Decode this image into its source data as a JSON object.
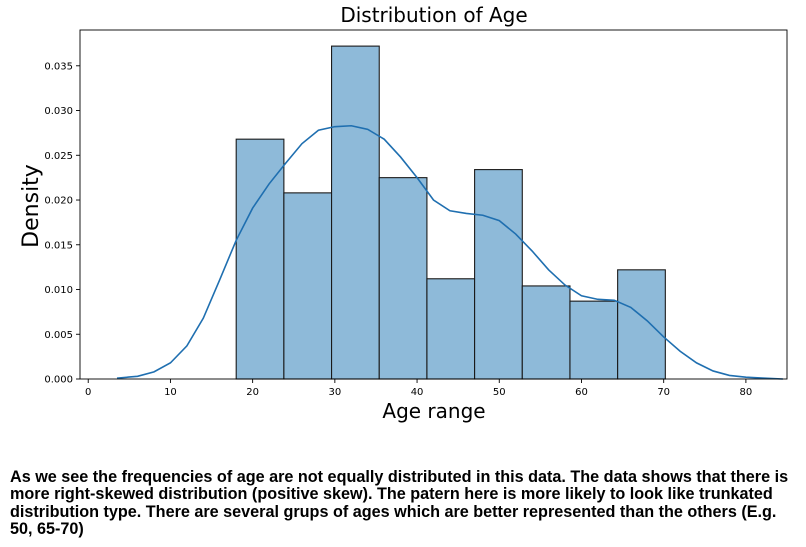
{
  "chart_data": {
    "type": "bar",
    "title": "Distribution of Age",
    "xlabel": "Age range",
    "ylabel": "Density",
    "xlim": [
      -1,
      85
    ],
    "ylim": [
      0,
      0.039
    ],
    "xticks": [
      0,
      10,
      20,
      30,
      40,
      50,
      60,
      70,
      80
    ],
    "xtick_labels": [
      "0",
      "10",
      "20",
      "30",
      "40",
      "50",
      "60",
      "70",
      "80"
    ],
    "yticks": [
      0,
      0.005,
      0.01,
      0.015,
      0.02,
      0.025,
      0.03,
      0.035
    ],
    "ytick_labels": [
      "0.000",
      "0.005",
      "0.010",
      "0.015",
      "0.020",
      "0.025",
      "0.030",
      "0.035"
    ],
    "bins": [
      {
        "start": 18.0,
        "end": 23.8,
        "density": 0.0268
      },
      {
        "start": 23.8,
        "end": 29.6,
        "density": 0.0208
      },
      {
        "start": 29.6,
        "end": 35.4,
        "density": 0.0372
      },
      {
        "start": 35.4,
        "end": 41.2,
        "density": 0.0225
      },
      {
        "start": 41.2,
        "end": 47.0,
        "density": 0.0112
      },
      {
        "start": 47.0,
        "end": 52.8,
        "density": 0.0234
      },
      {
        "start": 52.8,
        "end": 58.6,
        "density": 0.0104
      },
      {
        "start": 58.6,
        "end": 64.4,
        "density": 0.0087
      },
      {
        "start": 64.4,
        "end": 70.2,
        "density": 0.0122
      }
    ],
    "kde": {
      "x": [
        3.5,
        6,
        8,
        10,
        12,
        14,
        16,
        18,
        20,
        22,
        24,
        26,
        28,
        30,
        32,
        34,
        36,
        38,
        40,
        42,
        44,
        46,
        48,
        50,
        52,
        54,
        56,
        58,
        60,
        62,
        64,
        66,
        68,
        70,
        72,
        74,
        76,
        78,
        80,
        82,
        84.5
      ],
      "y": [
        0.0001,
        0.0003,
        0.0008,
        0.0018,
        0.0037,
        0.0068,
        0.0111,
        0.0155,
        0.0191,
        0.0218,
        0.0241,
        0.0263,
        0.0278,
        0.0282,
        0.0283,
        0.0279,
        0.0268,
        0.0248,
        0.0225,
        0.02,
        0.0188,
        0.0185,
        0.0183,
        0.0177,
        0.0162,
        0.0143,
        0.0122,
        0.0105,
        0.0093,
        0.0089,
        0.0088,
        0.008,
        0.0065,
        0.0047,
        0.0031,
        0.0018,
        0.0009,
        0.0004,
        0.0002,
        0.0001,
        0.0
      ]
    },
    "grid": false,
    "bar_color": "#8ebad9",
    "bar_edge_color": "#1a1a1a",
    "line_color": "#1f6fb0"
  },
  "caption": "As we see the frequencies of age are not equally distributed in this data. The data shows that there is more right-skewed distribution (positive skew). The patern here is more likely to look like trunkated distribution type. There are several grups of ages which are better represented than the others (E.g. 50, 65-70)"
}
